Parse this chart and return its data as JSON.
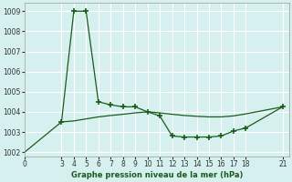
{
  "line1_x": [
    3,
    4,
    5,
    6,
    7,
    8,
    9,
    10,
    11,
    12,
    13,
    14,
    15,
    16,
    17,
    18,
    21
  ],
  "line1_y": [
    1003.5,
    1009.0,
    1009.0,
    1004.5,
    1004.35,
    1004.25,
    1004.25,
    1004.0,
    1003.8,
    1002.8,
    1002.75,
    1002.75,
    1002.75,
    1002.8,
    1003.05,
    1003.2,
    1004.25
  ],
  "line2_x": [
    0,
    3,
    4,
    5,
    6,
    7,
    8,
    9,
    10,
    11,
    12,
    13,
    14,
    15,
    16,
    17,
    18,
    21
  ],
  "line2_y": [
    1002.0,
    1003.5,
    1003.55,
    1003.65,
    1003.75,
    1003.82,
    1003.88,
    1003.95,
    1004.0,
    1003.95,
    1003.88,
    1003.82,
    1003.78,
    1003.75,
    1003.75,
    1003.8,
    1003.9,
    1004.25
  ],
  "xticks": [
    0,
    3,
    4,
    5,
    6,
    7,
    8,
    9,
    10,
    11,
    12,
    13,
    14,
    15,
    16,
    17,
    18,
    21
  ],
  "yticks": [
    1002,
    1003,
    1004,
    1005,
    1006,
    1007,
    1008,
    1009
  ],
  "xlim": [
    0,
    21.5
  ],
  "ylim": [
    1001.8,
    1009.4
  ],
  "xlabel": "Graphe pression niveau de la mer (hPa)",
  "line_color": "#1a5c1a",
  "bg_color": "#d6f0f0",
  "grid_color": "#b8dede",
  "marker": "+",
  "marker_size": 5
}
